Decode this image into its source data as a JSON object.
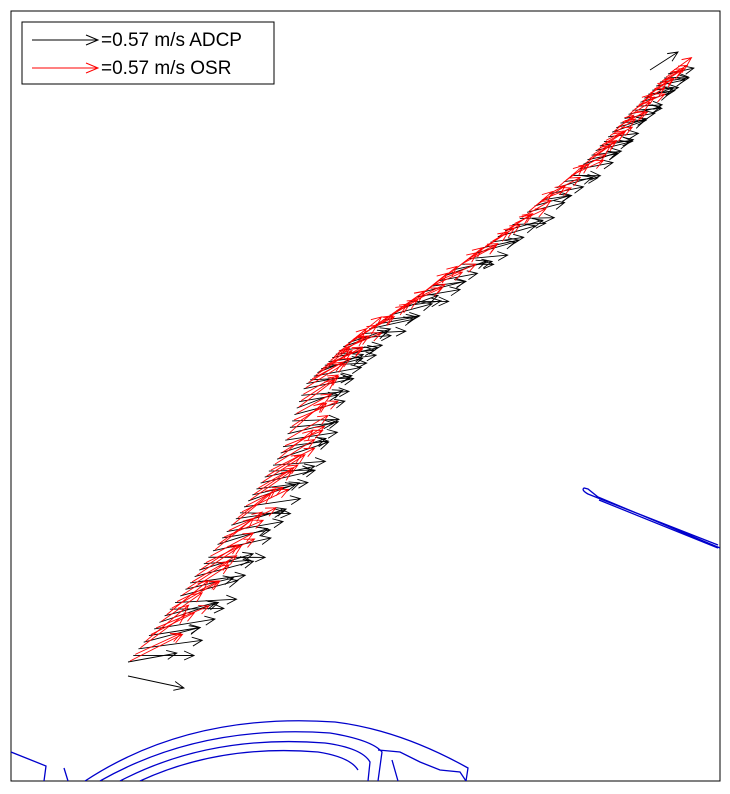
{
  "chart_data": {
    "type": "quiver",
    "title": "",
    "xlabel": "",
    "ylabel": "",
    "grid": false,
    "legend_position": "top-left",
    "reference_speed_mps": 0.57,
    "series": [
      {
        "name": "=0.57 m/s ADCP",
        "color": "#000000"
      },
      {
        "name": "=0.57 m/s OSR",
        "color": "#ff0000"
      }
    ]
  },
  "colors": {
    "adcp": "#000000",
    "osr": "#ff0000",
    "shoreline": "#0000cc",
    "frame": "#000000"
  }
}
